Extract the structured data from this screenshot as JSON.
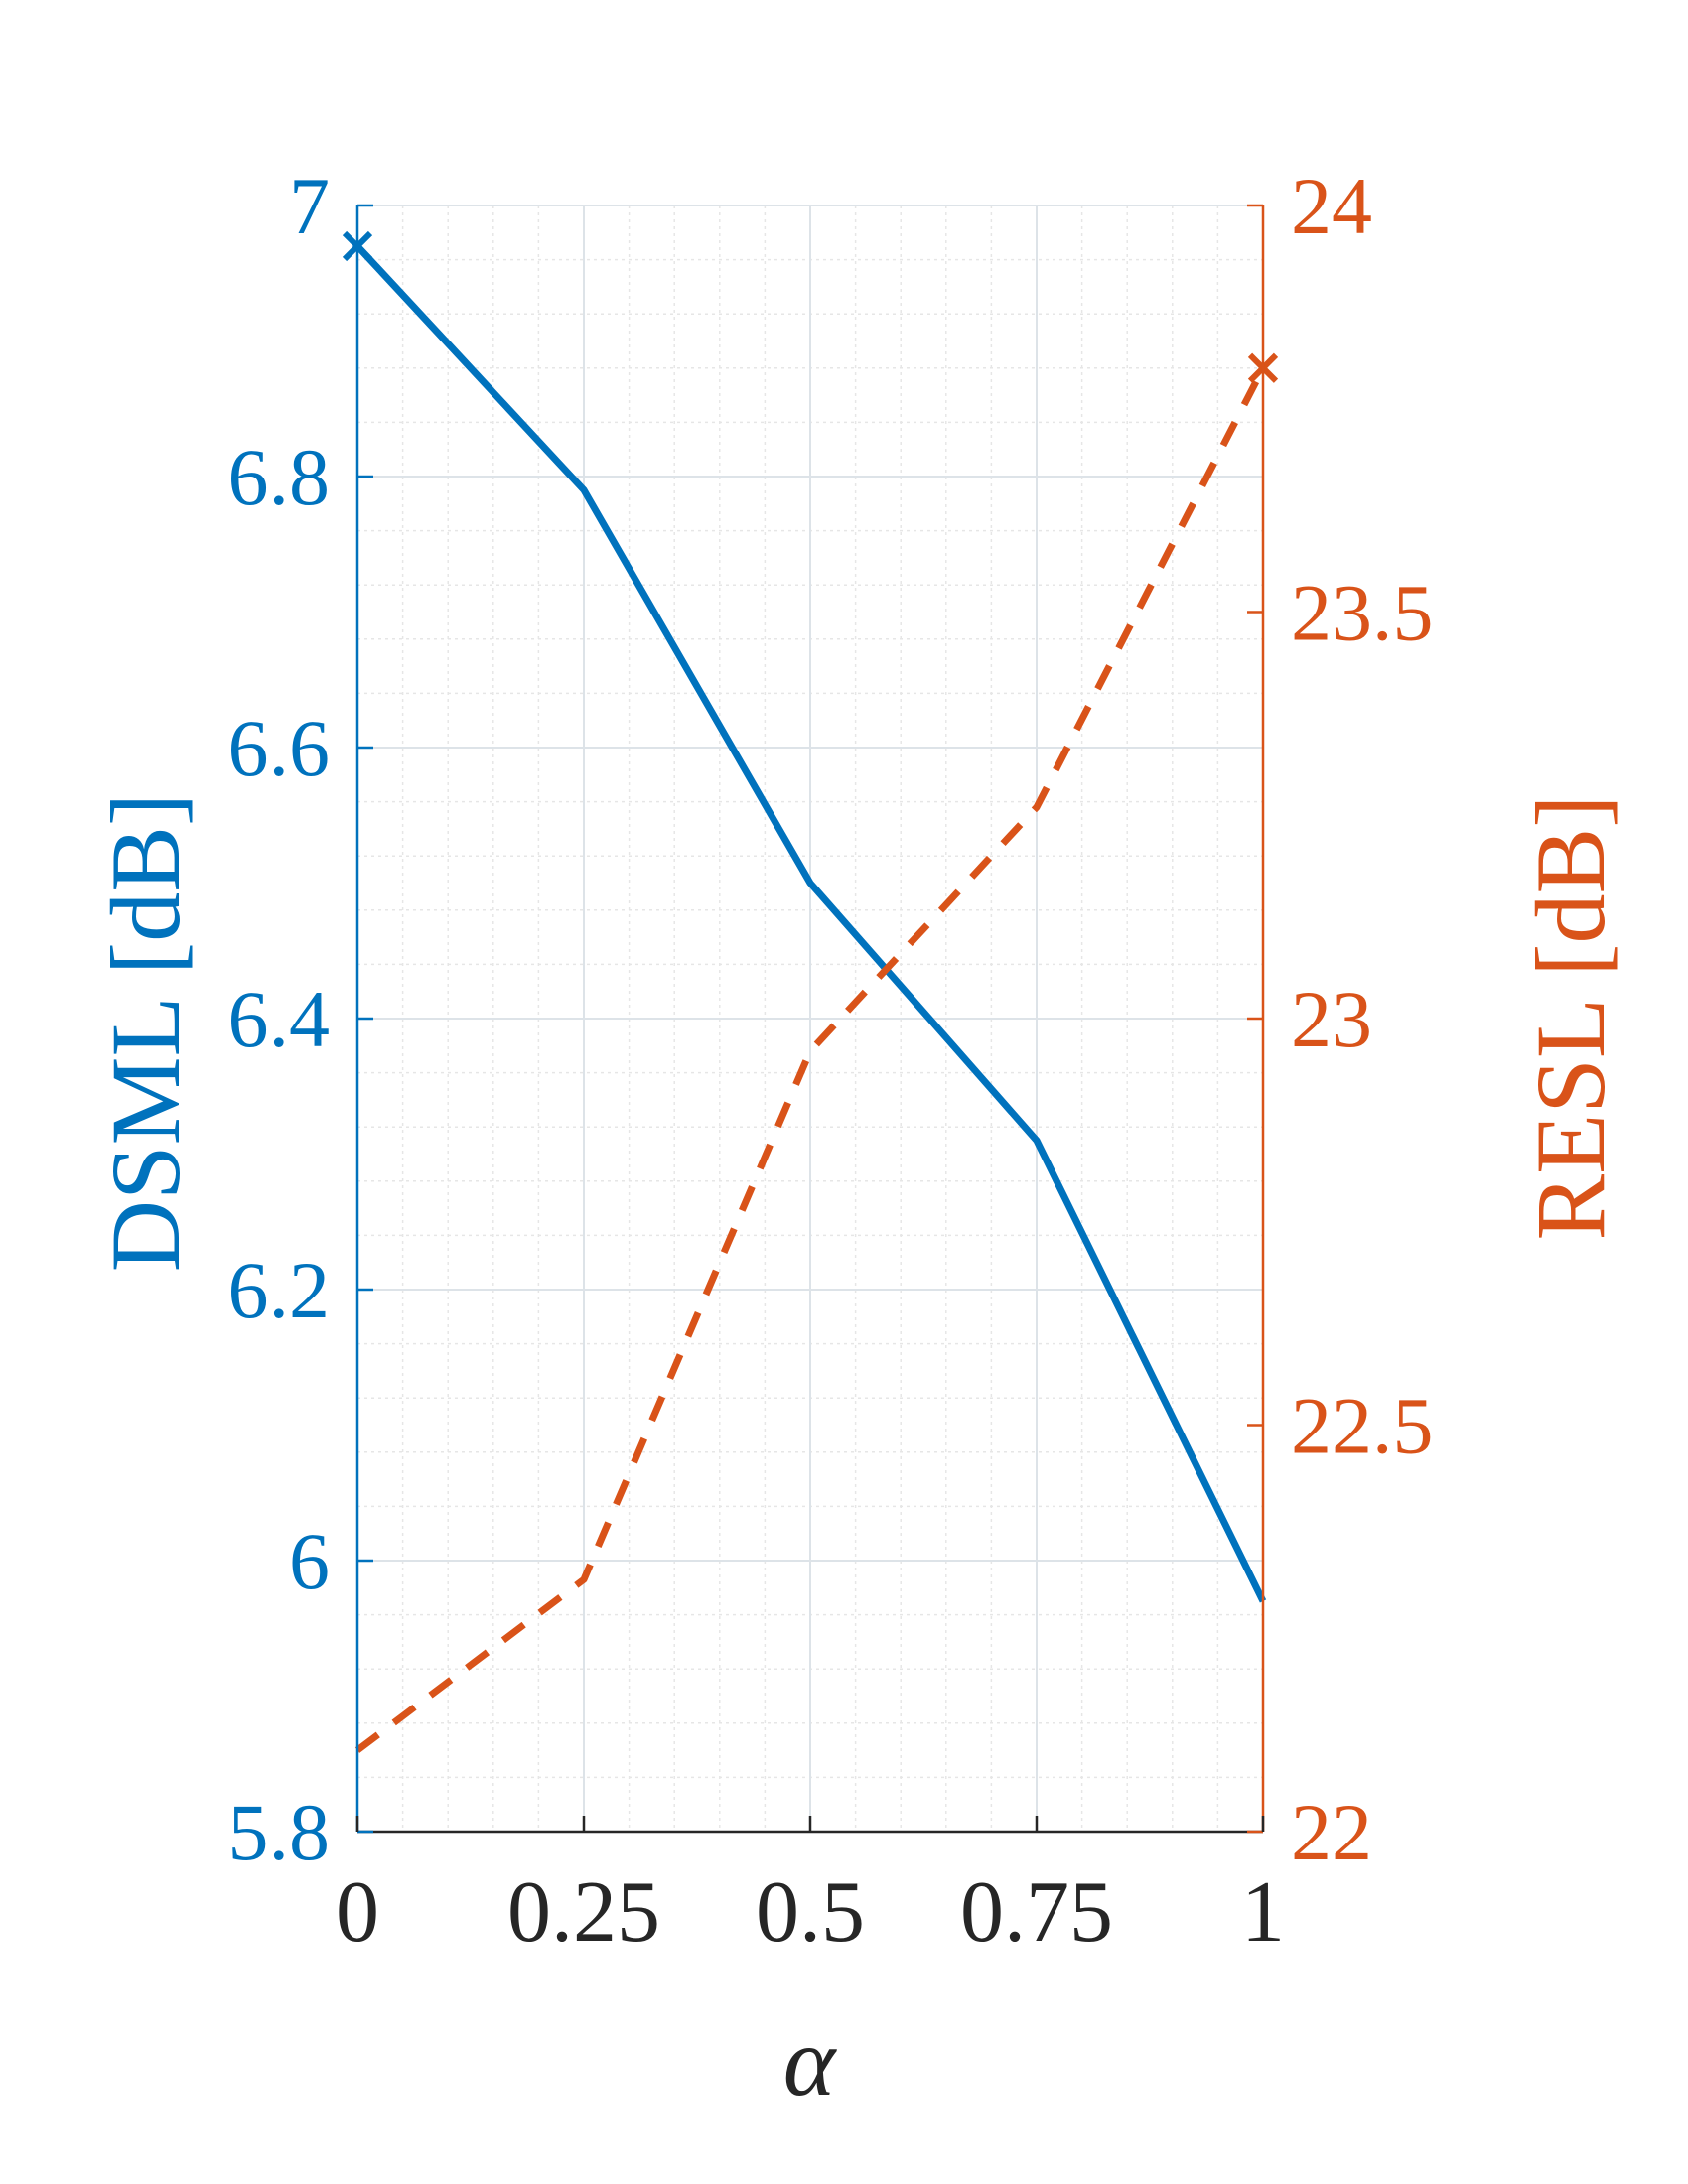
{
  "chart_data": {
    "type": "line",
    "xlabel": "α",
    "x": [
      0,
      0.25,
      0.5,
      0.75,
      1
    ],
    "x_ticks": [
      "0",
      "0.25",
      "0.5",
      "0.75",
      "1"
    ],
    "xlim": [
      0,
      1
    ],
    "y_left": {
      "label": "DSML [dB]",
      "ylim": [
        5.8,
        7.0
      ],
      "ticks": [
        5.8,
        6.0,
        6.2,
        6.4,
        6.6,
        6.8,
        7.0
      ],
      "tick_labels": [
        "5.8",
        "6",
        "6.2",
        "6.4",
        "6.6",
        "6.8",
        "7"
      ],
      "color": "#0072BD"
    },
    "y_right": {
      "label": "RESL [dB]",
      "ylim": [
        22,
        24
      ],
      "ticks": [
        22,
        22.5,
        23,
        23.5,
        24
      ],
      "tick_labels": [
        "22",
        "22.5",
        "23",
        "23.5",
        "24"
      ],
      "color": "#D95319"
    },
    "series": [
      {
        "axis": "left",
        "style": "solid",
        "marker_at_start": "x",
        "color": "#0072BD",
        "values": [
          6.97,
          6.79,
          6.5,
          6.31,
          5.97
        ]
      },
      {
        "axis": "right",
        "style": "dashed",
        "marker_at_end": "x",
        "color": "#D95319",
        "values": [
          22.1,
          22.31,
          22.96,
          23.26,
          23.8
        ]
      }
    ],
    "grid": true,
    "minor_grid": true
  }
}
